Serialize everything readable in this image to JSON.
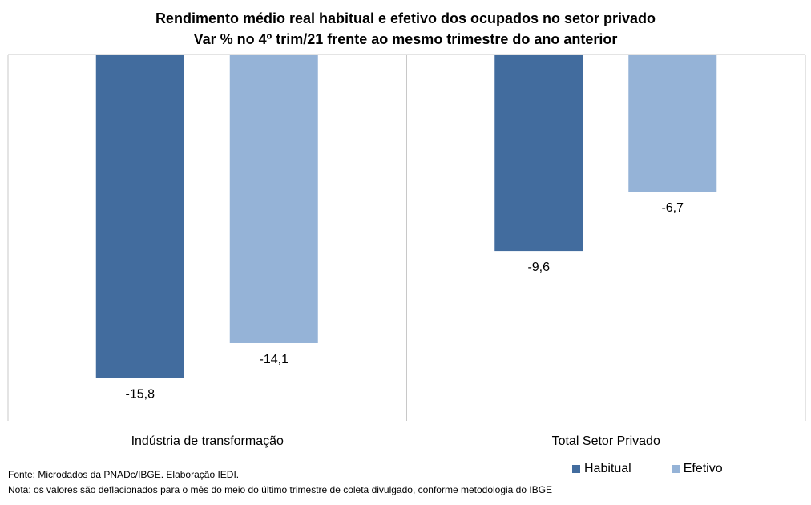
{
  "chart_data": {
    "type": "bar",
    "title": "Rendimento médio real habitual e efetivo dos ocupados no setor privado",
    "subtitle": "Var % no 4º trim/21 frente ao mesmo trimestre do ano anterior",
    "categories": [
      "Indústria de transformação",
      "Total Setor Privado"
    ],
    "series": [
      {
        "name": "Habitual",
        "values": [
          -15.8,
          -9.6
        ],
        "labels": [
          "-15,8",
          "-9,6"
        ],
        "color": "#426C9E"
      },
      {
        "name": "Efetivo",
        "values": [
          -14.1,
          -6.7
        ],
        "labels": [
          "-14,1",
          "-6,7"
        ],
        "color": "#95B3D7"
      }
    ],
    "ylim": [
      -17.9,
      0
    ],
    "xlabel": "",
    "ylabel": "",
    "grid": false,
    "legend_position": "bottom-right"
  },
  "footer": {
    "source": "Fonte: Microdados da PNADc/IBGE. Elaboração IEDI.",
    "note": "Nota: os valores são deflacionados para o mês do meio do último trimestre de coleta divulgado, conforme metodologia do IBGE"
  }
}
